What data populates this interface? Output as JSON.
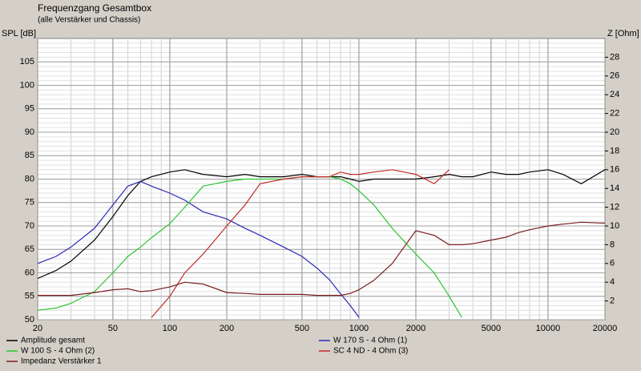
{
  "chart_data": {
    "type": "line",
    "title": "Frequenzgang Gesamtbox",
    "subtitle": "(alle Verstärker und Chassis)",
    "y_label": "SPL [dB]",
    "y2_label": "Z [Ohm]",
    "x_log": true,
    "grid": true,
    "minor_grid": true,
    "legend": "bottom",
    "xlim": [
      20,
      20000
    ],
    "xticks": [
      20,
      50,
      100,
      200,
      500,
      1000,
      2000,
      5000,
      10000,
      20000
    ],
    "ylim": [
      50,
      110
    ],
    "yticks": [
      50,
      55,
      60,
      65,
      70,
      75,
      80,
      85,
      90,
      95,
      100,
      105
    ],
    "y2lim": [
      0,
      30
    ],
    "y2ticks": [
      2,
      4,
      6,
      8,
      10,
      12,
      14,
      16,
      18,
      20,
      22,
      24,
      26,
      28
    ],
    "x": [
      20,
      25,
      30,
      40,
      50,
      60,
      70,
      80,
      100,
      120,
      150,
      200,
      250,
      300,
      400,
      500,
      600,
      700,
      800,
      900,
      1000,
      1200,
      1500,
      2000,
      2500,
      3000,
      3500,
      4000,
      5000,
      6000,
      7000,
      8000,
      10000,
      12000,
      15000,
      20000
    ],
    "series": [
      {
        "name": "Amplitude gesamt",
        "color": "#000000",
        "values": [
          58.8,
          60.5,
          62.5,
          67,
          72,
          76.5,
          79.5,
          80.5,
          81.5,
          82,
          81,
          80.5,
          81,
          80.5,
          80.5,
          81,
          80.5,
          80.5,
          80.5,
          80,
          79.5,
          80,
          80,
          80,
          80.5,
          81,
          80.5,
          80.5,
          81.5,
          81,
          81,
          81.5,
          82,
          81,
          79,
          82
        ]
      },
      {
        "name": "W 170 S - 4 Ohm (1)",
        "color": "#2a2ab8",
        "values": [
          62,
          63.5,
          65.5,
          69.5,
          74.5,
          78.5,
          79.5,
          78.5,
          77,
          75.5,
          73,
          71.5,
          69.5,
          68,
          65.5,
          63.5,
          61,
          58.5,
          55.5,
          53,
          50.5,
          null,
          null,
          null,
          null,
          null,
          null,
          null,
          null,
          null,
          null,
          null,
          null,
          null,
          null,
          null
        ]
      },
      {
        "name": "W 100 S - 4 Ohm (2)",
        "color": "#2ec42e",
        "values": [
          52,
          52.5,
          53.5,
          56,
          60,
          63.5,
          65.5,
          67.5,
          70.5,
          74,
          78.5,
          79.5,
          80,
          80,
          80,
          80.5,
          80.5,
          80.5,
          80,
          79,
          77.5,
          74.5,
          69.5,
          64,
          60,
          55,
          50.5,
          null,
          null,
          null,
          null,
          null,
          null,
          null,
          null,
          null
        ]
      },
      {
        "name": "SC 4 ND - 4 Ohm (3)",
        "color": "#c42a2a",
        "values": [
          null,
          null,
          null,
          null,
          null,
          null,
          null,
          50.5,
          55,
          60,
          64,
          70,
          74.5,
          79,
          80,
          80.5,
          80.5,
          80.5,
          81.5,
          81,
          81,
          81.5,
          82,
          81,
          79,
          82,
          null,
          null,
          null,
          null,
          null,
          null,
          null,
          null,
          null,
          null
        ]
      },
      {
        "name": "Impedanz Verstärker 1",
        "color": "#7a1c1c",
        "axis": "y2",
        "values": [
          2.6,
          2.6,
          2.6,
          2.9,
          3.2,
          3.3,
          3.0,
          3.1,
          3.5,
          4.0,
          3.8,
          2.9,
          2.8,
          2.7,
          2.7,
          2.7,
          2.6,
          2.6,
          2.6,
          2.8,
          3.2,
          4.2,
          6.0,
          9.5,
          9.0,
          8.0,
          8.0,
          8.1,
          8.5,
          8.8,
          9.3,
          9.6,
          10.0,
          10.2,
          10.4,
          10.3
        ]
      }
    ]
  }
}
